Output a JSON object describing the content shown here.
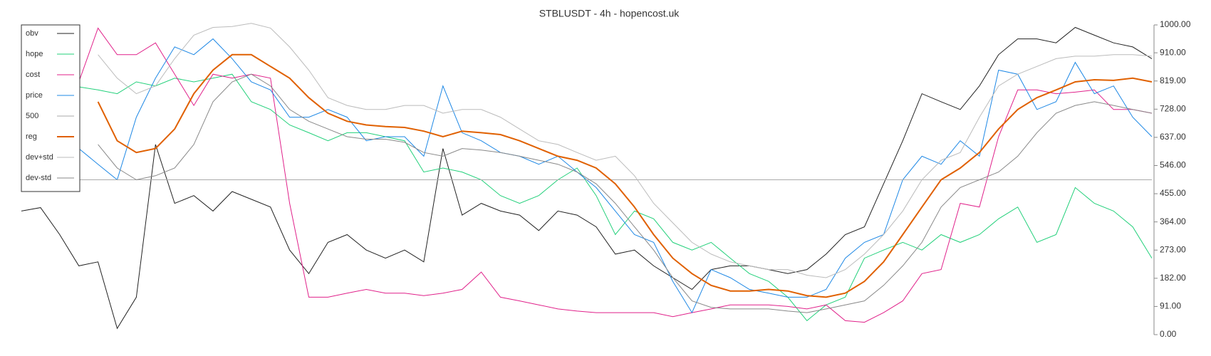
{
  "chart_data": {
    "type": "line",
    "title": "STBLUSDT - 4h - hopencost.uk",
    "ylim": [
      0,
      1000
    ],
    "yticks": [
      {
        "value": 0,
        "label": "0.00"
      },
      {
        "value": 91,
        "label": "91.00"
      },
      {
        "value": 182,
        "label": "182.00"
      },
      {
        "value": 273,
        "label": "273.00"
      },
      {
        "value": 364,
        "label": "364.00"
      },
      {
        "value": 455,
        "label": "455.00"
      },
      {
        "value": 546,
        "label": "546.00"
      },
      {
        "value": 637,
        "label": "637.00"
      },
      {
        "value": 728,
        "label": "728.00"
      },
      {
        "value": 819,
        "label": "819.00"
      },
      {
        "value": 910,
        "label": "910.00"
      },
      {
        "value": 1000,
        "label": "1000.00"
      }
    ],
    "legend": "upper left",
    "series": [
      {
        "name": "obv",
        "color": "#222222",
        "width": 1,
        "values": [
          399,
          410,
          323,
          222,
          235,
          20,
          121,
          614,
          424,
          449,
          399,
          462,
          437,
          412,
          273,
          197,
          298,
          323,
          273,
          247,
          273,
          235,
          601,
          386,
          424,
          399,
          386,
          336,
          399,
          386,
          348,
          260,
          273,
          222,
          184,
          146,
          210,
          222,
          222,
          210,
          197,
          210,
          260,
          323,
          348,
          487,
          626,
          778,
          752,
          727,
          803,
          904,
          955,
          955,
          942,
          992,
          967,
          942,
          929,
          891
        ]
      },
      {
        "name": "hope",
        "color": "#22d07a",
        "width": 1,
        "values": [
          null,
          null,
          null,
          800,
          790,
          778,
          816,
          803,
          828,
          816,
          828,
          841,
          752,
          727,
          677,
          652,
          626,
          652,
          652,
          639,
          626,
          525,
          538,
          525,
          500,
          449,
          424,
          449,
          500,
          538,
          449,
          323,
          399,
          374,
          298,
          273,
          298,
          247,
          197,
          172,
          121,
          45,
          96,
          121,
          247,
          273,
          298,
          273,
          323,
          298,
          323,
          374,
          412,
          298,
          323,
          475,
          424,
          399,
          348,
          247
        ]
      },
      {
        "name": "cost",
        "color": "#e0218a",
        "width": 1,
        "values": [
          null,
          null,
          null,
          816,
          990,
          904,
          904,
          942,
          841,
          740,
          841,
          828,
          841,
          828,
          424,
          121,
          121,
          134,
          146,
          134,
          134,
          126,
          134,
          146,
          202,
          121,
          109,
          96,
          83,
          76,
          71,
          71,
          71,
          71,
          58,
          71,
          83,
          96,
          96,
          96,
          91,
          83,
          96,
          45,
          40,
          71,
          109,
          197,
          210,
          424,
          412,
          639,
          790,
          790,
          778,
          783,
          790,
          727,
          727,
          715
        ]
      },
      {
        "name": "price",
        "color": "#1e88e5",
        "width": 1,
        "values": [
          null,
          null,
          null,
          601,
          550,
          500,
          702,
          828,
          929,
          904,
          955,
          891,
          816,
          790,
          702,
          702,
          727,
          702,
          626,
          639,
          639,
          576,
          803,
          652,
          626,
          588,
          576,
          550,
          576,
          525,
          475,
          399,
          323,
          298,
          172,
          71,
          210,
          184,
          146,
          134,
          121,
          121,
          146,
          247,
          298,
          323,
          500,
          576,
          550,
          626,
          576,
          854,
          841,
          727,
          752,
          879,
          778,
          803,
          702,
          639
        ]
      },
      {
        "name": "500",
        "color": "#aaaaaa",
        "width": 1,
        "values": [
          500,
          500,
          500,
          500,
          500,
          500,
          500,
          500,
          500,
          500,
          500,
          500,
          500,
          500,
          500,
          500,
          500,
          500,
          500,
          500,
          500,
          500,
          500,
          500,
          500,
          500,
          500,
          500,
          500,
          500,
          500,
          500,
          500,
          500,
          500,
          500,
          500,
          500,
          500,
          500,
          500,
          500,
          500,
          500,
          500,
          500,
          500,
          500,
          500,
          500,
          500,
          500,
          500,
          500,
          500,
          500,
          500,
          500,
          500,
          500
        ]
      },
      {
        "name": "reg",
        "color": "#e06000",
        "width": 2,
        "values": [
          null,
          null,
          null,
          null,
          752,
          626,
          588,
          601,
          664,
          778,
          854,
          904,
          904,
          866,
          828,
          765,
          715,
          689,
          677,
          672,
          669,
          657,
          639,
          657,
          652,
          646,
          626,
          601,
          576,
          563,
          538,
          487,
          412,
          323,
          247,
          197,
          159,
          141,
          141,
          146,
          141,
          126,
          121,
          134,
          172,
          235,
          323,
          412,
          500,
          538,
          588,
          664,
          727,
          765,
          790,
          816,
          823,
          821,
          828,
          816
        ]
      },
      {
        "name": "dev+std",
        "color": "#bbbbbb",
        "width": 1,
        "values": [
          null,
          null,
          null,
          null,
          904,
          828,
          778,
          803,
          891,
          967,
          992,
          995,
          1005,
          990,
          929,
          854,
          765,
          740,
          727,
          727,
          740,
          740,
          715,
          727,
          727,
          702,
          664,
          626,
          614,
          588,
          563,
          576,
          513,
          424,
          361,
          298,
          260,
          235,
          222,
          210,
          210,
          192,
          184,
          210,
          260,
          323,
          399,
          500,
          563,
          588,
          702,
          803,
          841,
          866,
          891,
          899,
          899,
          904,
          904,
          899
        ]
      },
      {
        "name": "dev-std",
        "color": "#888888",
        "width": 1,
        "values": [
          null,
          null,
          null,
          null,
          614,
          538,
          500,
          513,
          538,
          614,
          752,
          816,
          841,
          803,
          727,
          689,
          664,
          639,
          631,
          631,
          621,
          588,
          576,
          601,
          596,
          588,
          576,
          563,
          550,
          525,
          487,
          424,
          348,
          273,
          184,
          109,
          88,
          83,
          83,
          83,
          76,
          71,
          83,
          96,
          109,
          159,
          222,
          298,
          412,
          475,
          500,
          525,
          576,
          652,
          715,
          740,
          752,
          740,
          727,
          715
        ]
      }
    ]
  }
}
